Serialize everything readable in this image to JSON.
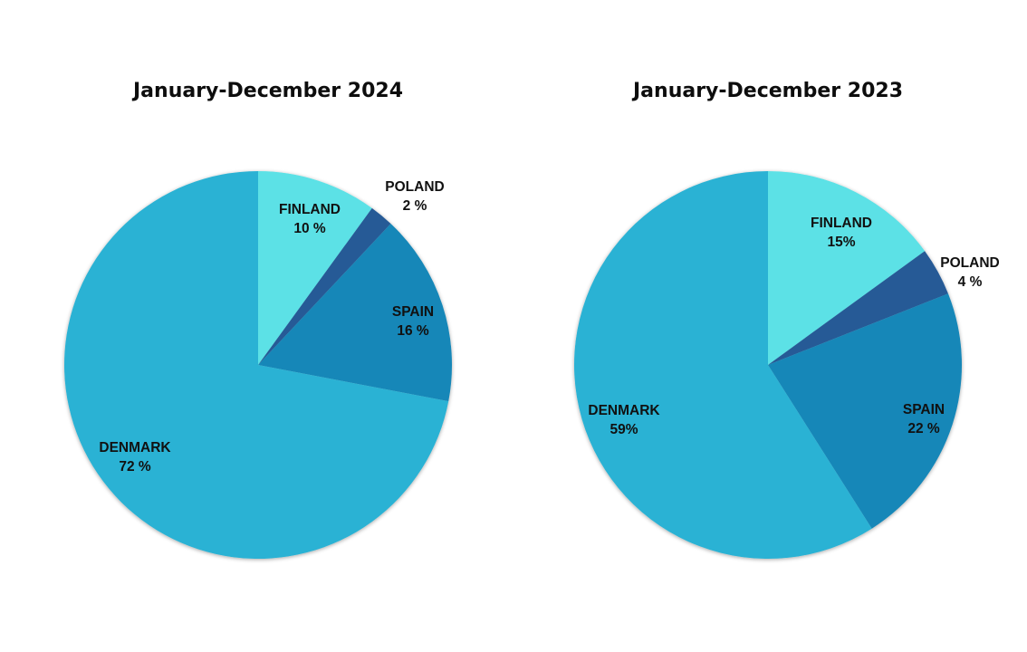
{
  "chart_data": [
    {
      "type": "pie",
      "title": "January-December 2024",
      "slices": [
        {
          "label": "FINLAND",
          "value": 10,
          "value_text": "10 %",
          "color": "#5ce1e6"
        },
        {
          "label": "POLAND",
          "value": 2,
          "value_text": "2 %",
          "color": "#255a96"
        },
        {
          "label": "SPAIN",
          "value": 16,
          "value_text": "16 %",
          "color": "#1587b8"
        },
        {
          "label": "DENMARK",
          "value": 72,
          "value_text": "72 %",
          "color": "#2ab2d4"
        }
      ]
    },
    {
      "type": "pie",
      "title": "January-December 2023",
      "slices": [
        {
          "label": "FINLAND",
          "value": 15,
          "value_text": "15%",
          "color": "#5ce1e6"
        },
        {
          "label": "POLAND",
          "value": 4,
          "value_text": "4 %",
          "color": "#255a96"
        },
        {
          "label": "SPAIN",
          "value": 22,
          "value_text": "22 %",
          "color": "#1587b8"
        },
        {
          "label": "DENMARK",
          "value": 59,
          "value_text": "59%",
          "color": "#2ab2d4"
        }
      ]
    }
  ]
}
